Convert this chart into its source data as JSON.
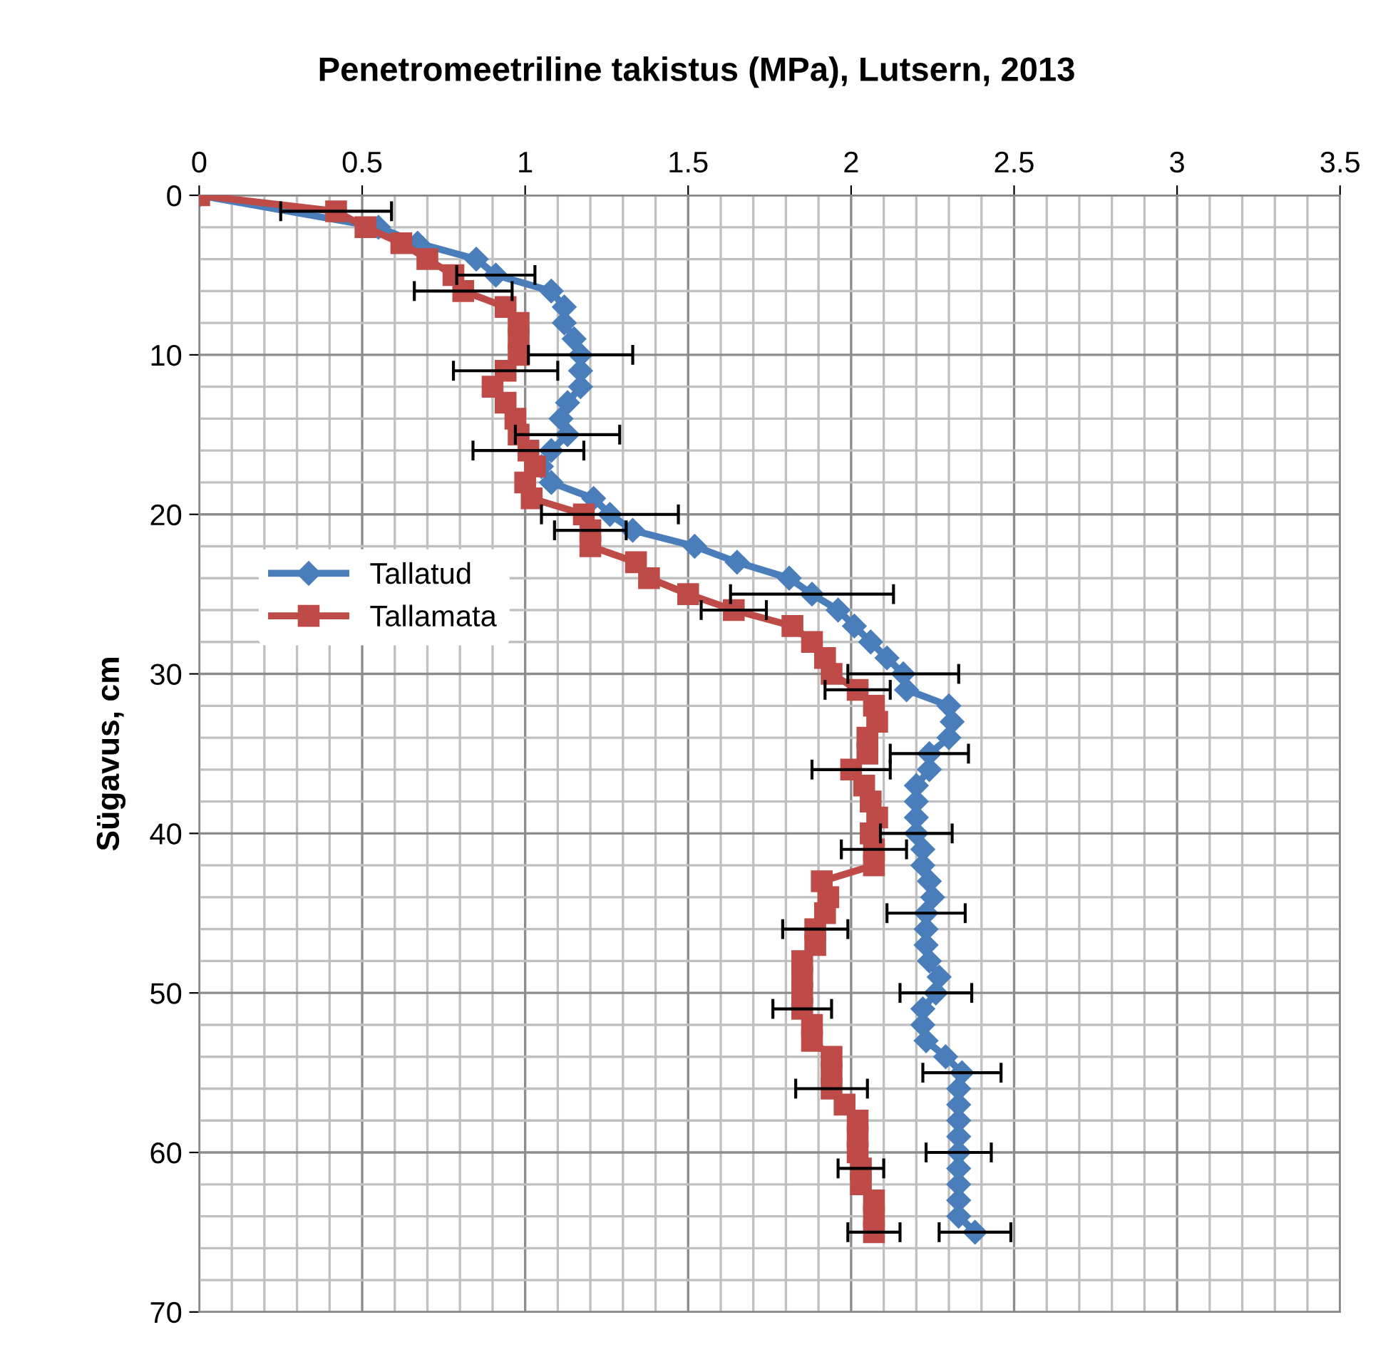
{
  "chart_data": {
    "type": "line",
    "title": "Penetromeetriline takistus (MPa), Lutsern, 2013",
    "ylabel": "Sügavus, cm",
    "xlim": [
      0,
      3.5
    ],
    "xticks": [
      0,
      0.5,
      1,
      1.5,
      2,
      2.5,
      3,
      3.5
    ],
    "ylim": [
      70,
      0
    ],
    "yticks": [
      0,
      10,
      20,
      30,
      40,
      50,
      60,
      70
    ],
    "grid": true,
    "legend": "left",
    "series": [
      {
        "name": "Tallatud",
        "color": "#4a7ebb",
        "marker": "diamond",
        "x": [
          0,
          0.55,
          0.67,
          0.85,
          0.91,
          1.08,
          1.12,
          1.12,
          1.15,
          1.17,
          1.17,
          1.17,
          1.13,
          1.11,
          1.13,
          1.08,
          1.05,
          1.08,
          1.21,
          1.26,
          1.33,
          1.52,
          1.65,
          1.81,
          1.88,
          1.96,
          2.01,
          2.06,
          2.11,
          2.16,
          2.17,
          2.3,
          2.31,
          2.3,
          2.24,
          2.24,
          2.2,
          2.2,
          2.2,
          2.2,
          2.22,
          2.22,
          2.24,
          2.25,
          2.23,
          2.23,
          2.23,
          2.24,
          2.27,
          2.26,
          2.22,
          2.22,
          2.23,
          2.29,
          2.34,
          2.33,
          2.33,
          2.33,
          2.33,
          2.33,
          2.33,
          2.33,
          2.33,
          2.33,
          2.38
        ],
        "values": [
          0,
          2,
          3,
          4,
          5,
          6,
          7,
          8,
          9,
          10,
          11,
          12,
          13,
          14,
          15,
          16,
          17,
          18,
          19,
          20,
          21,
          22,
          23,
          24,
          25,
          26,
          27,
          28,
          29,
          30,
          31,
          32,
          33,
          34,
          35,
          36,
          37,
          38,
          39,
          40,
          41,
          42,
          43,
          44,
          45,
          46,
          47,
          48,
          49,
          50,
          51,
          52,
          53,
          54,
          55,
          56,
          57,
          58,
          59,
          60,
          61,
          62,
          63,
          64,
          65
        ],
        "xerrors": [
          null,
          null,
          null,
          null,
          0.12,
          null,
          null,
          null,
          null,
          0.16,
          null,
          null,
          null,
          null,
          0.16,
          null,
          null,
          null,
          null,
          0.21,
          null,
          null,
          null,
          null,
          0.25,
          null,
          null,
          null,
          null,
          0.17,
          null,
          null,
          null,
          null,
          0.12,
          null,
          null,
          null,
          null,
          0.11,
          null,
          null,
          null,
          null,
          0.12,
          null,
          null,
          null,
          null,
          0.11,
          null,
          null,
          null,
          null,
          0.12,
          null,
          null,
          null,
          null,
          0.1,
          null,
          null,
          null,
          null,
          0.11
        ]
      },
      {
        "name": "Tallamata",
        "color": "#be4b48",
        "marker": "square",
        "x": [
          0,
          0.42,
          0.51,
          0.62,
          0.7,
          0.78,
          0.81,
          0.94,
          0.98,
          0.98,
          0.98,
          0.94,
          0.9,
          0.94,
          0.97,
          0.98,
          1.01,
          1.03,
          1.0,
          1.02,
          1.18,
          1.2,
          1.2,
          1.34,
          1.38,
          1.5,
          1.64,
          1.82,
          1.88,
          1.92,
          1.94,
          2.02,
          2.07,
          2.08,
          2.05,
          2.05,
          2.0,
          2.04,
          2.06,
          2.08,
          2.06,
          2.07,
          2.07,
          1.91,
          1.93,
          1.92,
          1.89,
          1.89,
          1.85,
          1.85,
          1.85,
          1.85,
          1.88,
          1.88,
          1.94,
          1.94,
          1.94,
          1.98,
          2.02,
          2.02,
          2.02,
          2.03,
          2.03,
          2.07,
          2.07,
          2.07
        ],
        "values": [
          0,
          1,
          2,
          3,
          4,
          5,
          6,
          7,
          8,
          9,
          10,
          11,
          12,
          13,
          14,
          15,
          16,
          17,
          18,
          19,
          20,
          21,
          22,
          23,
          24,
          25,
          26,
          27,
          28,
          29,
          30,
          31,
          32,
          33,
          34,
          35,
          36,
          37,
          38,
          39,
          40,
          41,
          42,
          43,
          44,
          45,
          46,
          47,
          48,
          49,
          50,
          51,
          52,
          53,
          54,
          55,
          56,
          57,
          58,
          59,
          60,
          61,
          62,
          63,
          64,
          65
        ],
        "xerrors": [
          null,
          0.17,
          null,
          null,
          null,
          null,
          0.15,
          null,
          null,
          null,
          null,
          0.16,
          null,
          null,
          null,
          null,
          0.17,
          null,
          null,
          null,
          null,
          0.11,
          null,
          null,
          null,
          null,
          0.1,
          null,
          null,
          null,
          null,
          0.1,
          null,
          null,
          null,
          null,
          0.12,
          null,
          null,
          null,
          null,
          0.1,
          null,
          null,
          null,
          null,
          0.1,
          null,
          null,
          null,
          null,
          0.09,
          null,
          null,
          null,
          null,
          0.11,
          null,
          null,
          null,
          null,
          0.07,
          null,
          null,
          null,
          0.08
        ]
      }
    ]
  }
}
